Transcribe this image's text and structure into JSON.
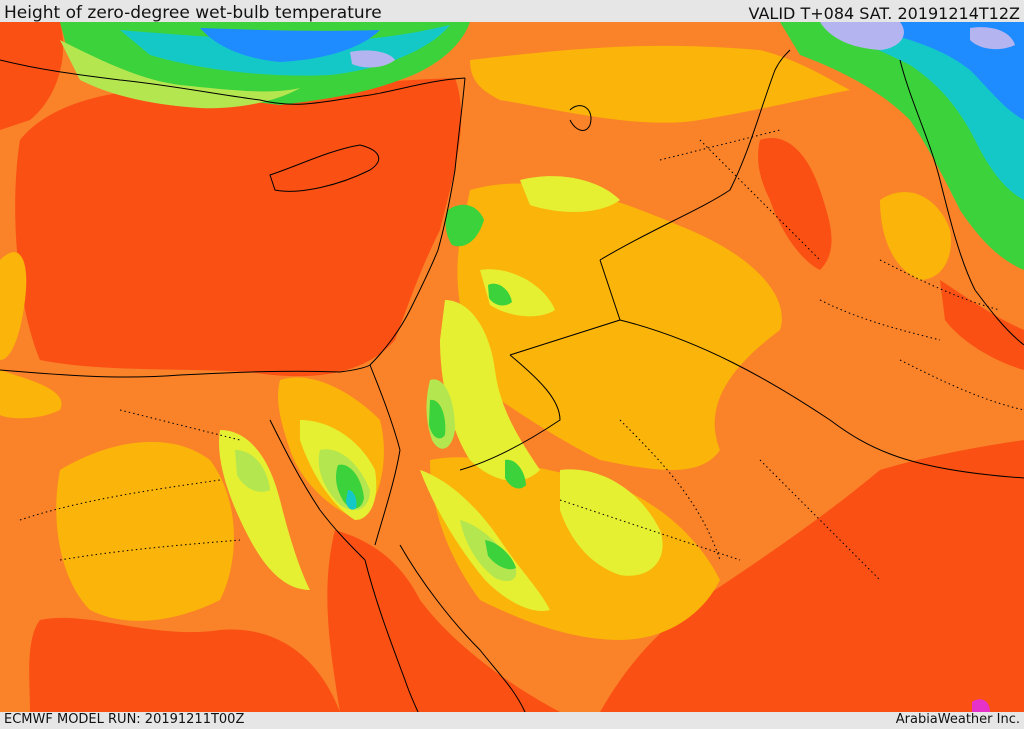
{
  "header": {
    "title": "Height of zero-degree wet-bulb temperature",
    "valid": "VALID T+084 SAT. 20191214T12Z"
  },
  "footer": {
    "model_run": "ECMWF MODEL RUN: 20191211T00Z",
    "brand": "ArabiaWeather Inc."
  },
  "palette": {
    "dark_orange": "#fa5014",
    "orange": "#fa8228",
    "amber": "#fab40a",
    "yellow": "#e6f032",
    "light_green": "#b4e650",
    "green": "#3cd23c",
    "cyan": "#14c8c8",
    "blue": "#1e8cff",
    "lavender": "#b4b4f0",
    "magenta": "#e632c8"
  }
}
